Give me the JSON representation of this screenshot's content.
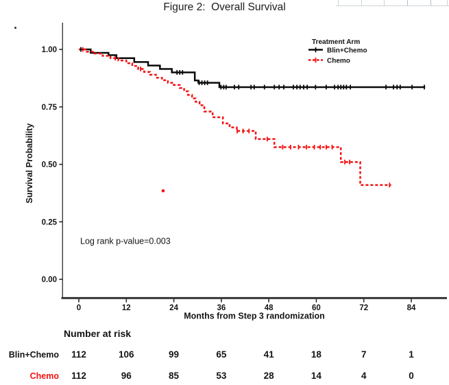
{
  "chart_data": {
    "type": "line",
    "subtype": "kaplan_meier_step",
    "title": "Figure 2:  Overall Survival",
    "xlabel": "Months from Step 3 randomization",
    "ylabel": "Survival Probability",
    "xlim": [
      0,
      92.5
    ],
    "ylim": [
      0,
      1.0
    ],
    "grid": false,
    "x_ticks": [
      0,
      12,
      24,
      36,
      48,
      60,
      72,
      84
    ],
    "y_ticks": [
      1.0,
      0.75,
      0.5,
      0.25,
      0.0
    ],
    "y_tick_labels": [
      "1.00",
      "0.75",
      "0.50",
      "0.25",
      "0.00"
    ],
    "legend": {
      "title": "Treatment Arm",
      "position": "top-right",
      "entries": [
        {
          "label": "Blin+Chemo",
          "color": "#0a0a0a",
          "line_style": "solid"
        },
        {
          "label": "Chemo",
          "color": "#f51111",
          "line_style": "dashed"
        }
      ]
    },
    "annotation": {
      "text": "Log rank p-value=0.003",
      "x_months": 0.35,
      "y_survival": 0.155
    },
    "series": [
      {
        "name": "Blin+Chemo",
        "color": "#0a0a0a",
        "line_style": "solid",
        "steps": [
          [
            0,
            1.0
          ],
          [
            3,
            0.985
          ],
          [
            7.5,
            0.975
          ],
          [
            9.5,
            0.962
          ],
          [
            14,
            0.945
          ],
          [
            17.5,
            0.93
          ],
          [
            20.5,
            0.915
          ],
          [
            23.5,
            0.9
          ],
          [
            29.3,
            0.865
          ],
          [
            30.2,
            0.855
          ],
          [
            35.5,
            0.836
          ],
          [
            87.5,
            0.836
          ]
        ],
        "censor_months": [
          0.5,
          24.8,
          25.5,
          26.2,
          30.4,
          31.1,
          31.8,
          32.5,
          35.9,
          36.6,
          37.2,
          39.3,
          40.4,
          43.5,
          44.3,
          46.9,
          49.4,
          50.6,
          51.8,
          54.2,
          55.1,
          55.9,
          56.8,
          57.7,
          59.8,
          62.5,
          64.6,
          65.5,
          66.2,
          66.9,
          67.6,
          68.6,
          77.6,
          79.5,
          80.4,
          81.2,
          84.2,
          87.3
        ]
      },
      {
        "name": "Chemo",
        "color": "#f51111",
        "line_style": "dashed",
        "steps": [
          [
            0,
            1.0
          ],
          [
            2,
            0.99
          ],
          [
            4,
            0.982
          ],
          [
            6,
            0.972
          ],
          [
            8,
            0.962
          ],
          [
            10,
            0.952
          ],
          [
            12,
            0.94
          ],
          [
            13.5,
            0.928
          ],
          [
            15,
            0.915
          ],
          [
            16.5,
            0.902
          ],
          [
            18,
            0.89
          ],
          [
            19.5,
            0.877
          ],
          [
            21,
            0.866
          ],
          [
            22.5,
            0.855
          ],
          [
            24,
            0.845
          ],
          [
            25.5,
            0.832
          ],
          [
            26.6,
            0.818
          ],
          [
            27.6,
            0.802
          ],
          [
            28.6,
            0.787
          ],
          [
            29.5,
            0.772
          ],
          [
            30.5,
            0.757
          ],
          [
            31.7,
            0.73
          ],
          [
            33.8,
            0.705
          ],
          [
            36.4,
            0.678
          ],
          [
            38.1,
            0.661
          ],
          [
            39.9,
            0.645
          ],
          [
            44.7,
            0.61
          ],
          [
            49.4,
            0.575
          ],
          [
            66.2,
            0.51
          ],
          [
            71.1,
            0.41
          ],
          [
            78.9,
            0.41
          ]
        ],
        "censor_months": [
          1.0,
          9.2,
          15.6,
          40.0,
          41.5,
          43.0,
          47.6,
          51.5,
          53.5,
          55.5,
          57.5,
          59.5,
          61.0,
          62.5,
          64.0,
          67.2,
          68.4,
          78.5
        ]
      }
    ],
    "outlier_points": [
      {
        "series": "Chemo",
        "x": 21.3,
        "y": 0.385,
        "color": "#f51111"
      }
    ]
  },
  "risk_table": {
    "heading": "Number at risk",
    "columns_months": [
      0,
      12,
      24,
      36,
      48,
      60,
      72,
      84
    ],
    "rows": [
      {
        "label": "Blin+Chemo",
        "color": "#141414",
        "values": [
          "112",
          "106",
          "99",
          "65",
          "41",
          "18",
          "7",
          "1"
        ]
      },
      {
        "label": "Chemo",
        "color": "#f51111",
        "values": [
          "112",
          "96",
          "85",
          "53",
          "28",
          "14",
          "4",
          "0"
        ]
      }
    ]
  }
}
